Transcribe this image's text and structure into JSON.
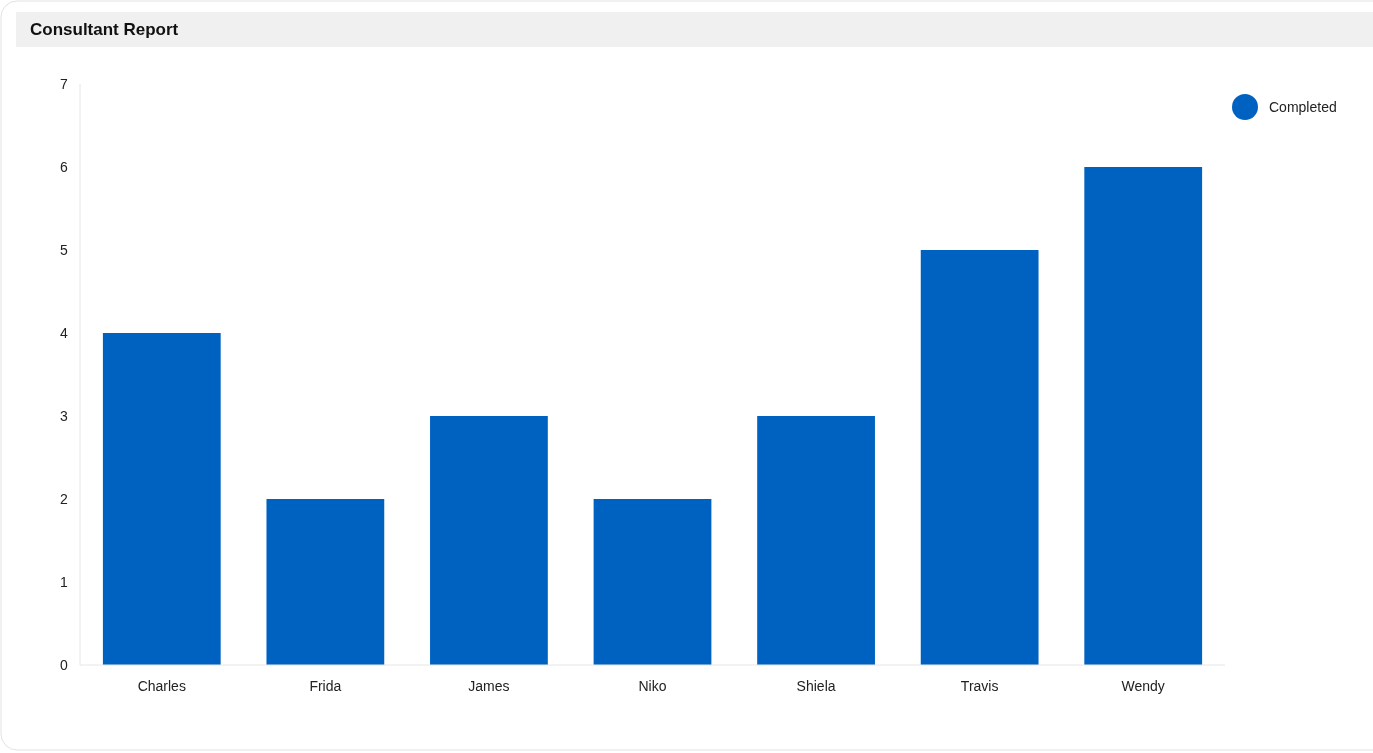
{
  "chart_data": {
    "type": "bar",
    "title": "Consultant Report",
    "categories": [
      "Charles",
      "Frida",
      "James",
      "Niko",
      "Shiela",
      "Travis",
      "Wendy"
    ],
    "series": [
      {
        "name": "Completed",
        "color": "#0062c0",
        "values": [
          4,
          2,
          3,
          2,
          3,
          5,
          6
        ]
      }
    ],
    "ylim": [
      0,
      7
    ],
    "yticks": [
      0,
      1,
      2,
      3,
      4,
      5,
      6,
      7
    ],
    "grid": false,
    "legend": "top right"
  }
}
